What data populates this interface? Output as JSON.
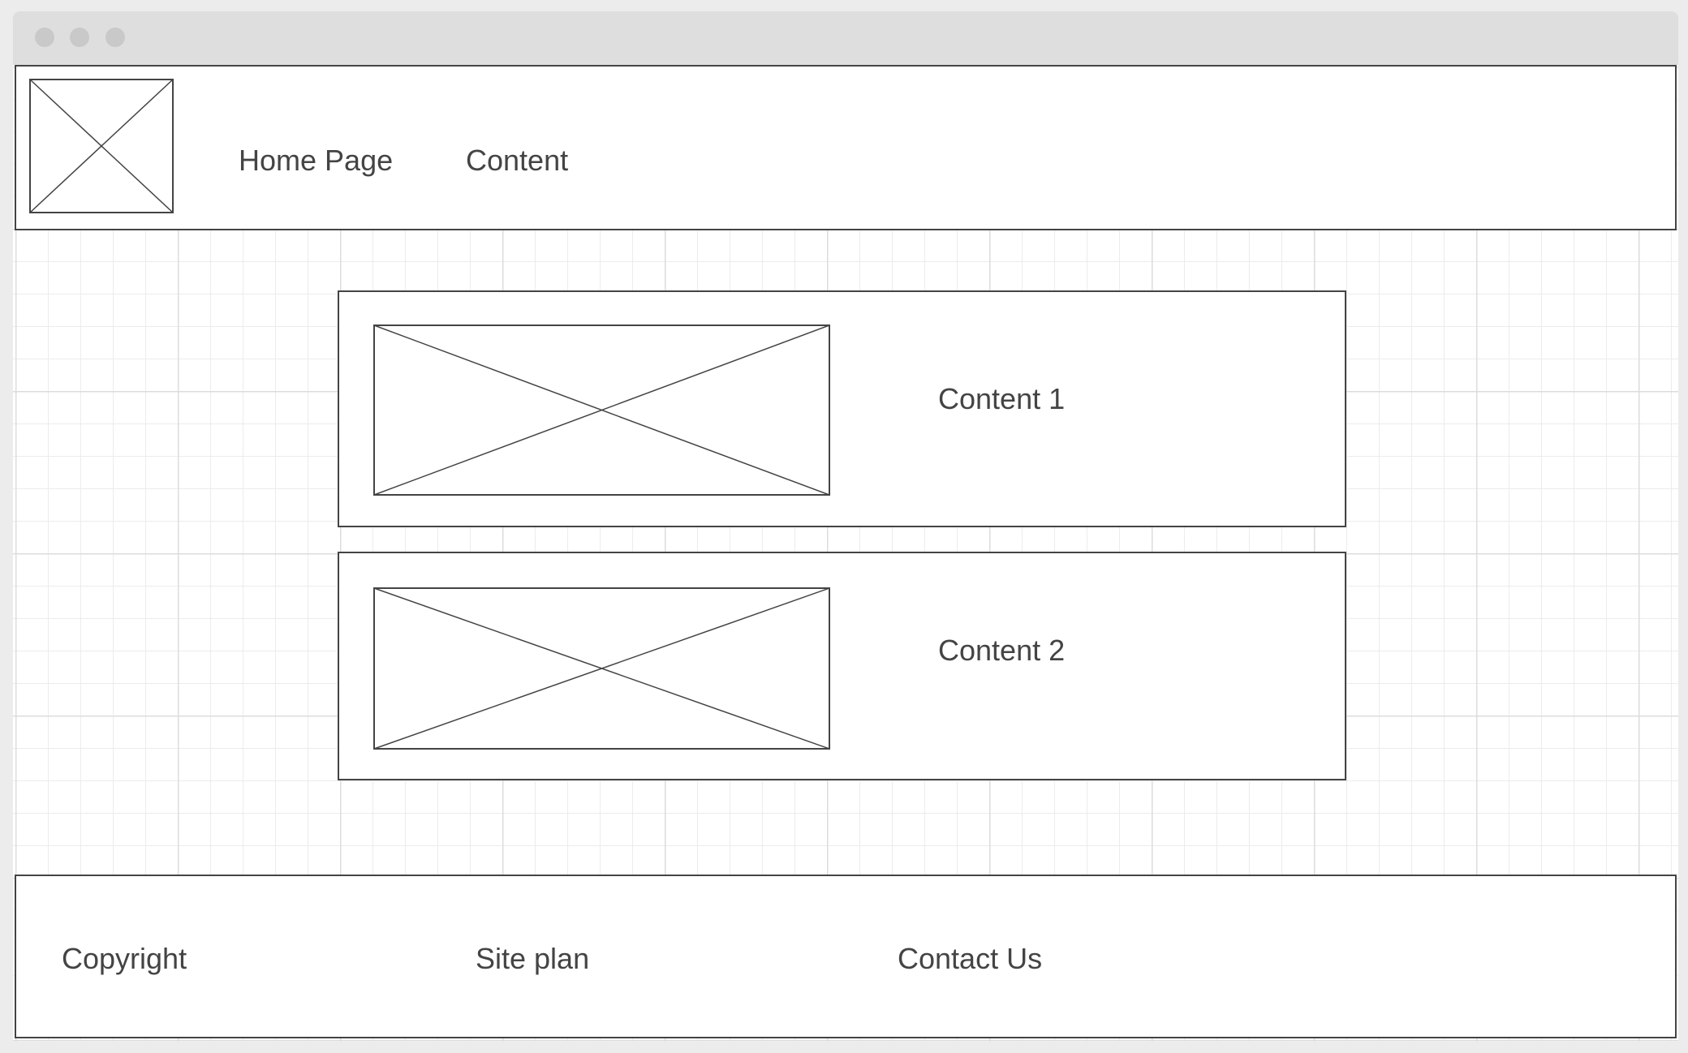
{
  "window": {
    "controls": [
      "close",
      "minimize",
      "maximize"
    ]
  },
  "header": {
    "logo_icon": "image-placeholder-icon",
    "nav": [
      {
        "label": "Home Page"
      },
      {
        "label": "Content"
      }
    ]
  },
  "main": {
    "cards": [
      {
        "label": "Content 1",
        "icon": "image-placeholder-icon"
      },
      {
        "label": "Content 2",
        "icon": "image-placeholder-icon"
      }
    ]
  },
  "footer": {
    "links": [
      {
        "label": "Copyright"
      },
      {
        "label": "Site plan"
      },
      {
        "label": "Contact Us"
      }
    ]
  },
  "colors": {
    "stroke": "#444444",
    "titlebar": "#dedede",
    "grid": "#e4e4e4"
  }
}
